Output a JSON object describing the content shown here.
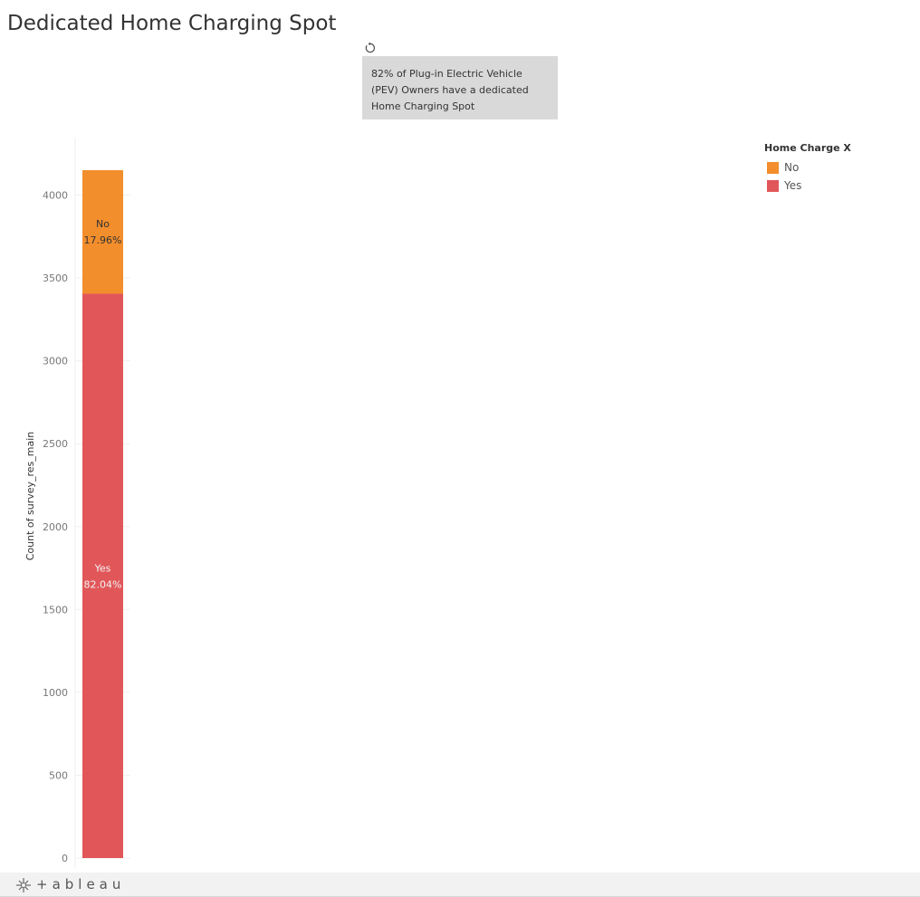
{
  "title": "Dedicated Home Charging Spot",
  "annotation": {
    "line1": "82% of Plug-in Electric Vehicle",
    "line2": "(PEV) Owners have a dedicated",
    "line3": "Home Charging Spot"
  },
  "toolbar": {
    "revert_icon": "revert-icon"
  },
  "legend": {
    "title": "Home Charge X",
    "items": [
      {
        "label": "No",
        "color": "#f28e2b"
      },
      {
        "label": "Yes",
        "color": "#e15759"
      }
    ]
  },
  "footer": {
    "brand": "+ableau",
    "brand_icon": "tableau-logo-icon"
  },
  "chart_data": {
    "type": "bar",
    "stacked": true,
    "ylabel": "Count of survey_res_main",
    "xlabel": "",
    "ylim": [
      0,
      4150
    ],
    "yticks": [
      0,
      500,
      1000,
      1500,
      2000,
      2500,
      3000,
      3500,
      4000
    ],
    "grid": true,
    "legend_position": "top-right",
    "categories": [
      ""
    ],
    "series": [
      {
        "name": "Yes",
        "values": [
          3405
        ],
        "label_text": "Yes",
        "pct_label": "82.04%",
        "color": "#e15759"
      },
      {
        "name": "No",
        "values": [
          745
        ],
        "label_text": "No",
        "pct_label": "17.96%",
        "color": "#f28e2b"
      }
    ]
  }
}
